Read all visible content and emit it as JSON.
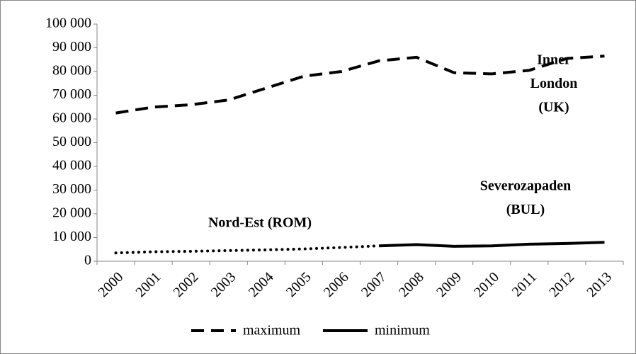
{
  "chart_data": {
    "type": "line",
    "categories": [
      "2000",
      "2001",
      "2002",
      "2003",
      "2004",
      "2005",
      "2006",
      "2007",
      "2008",
      "2009",
      "2010",
      "2011",
      "2012",
      "2013"
    ],
    "series": [
      {
        "name": "maximum",
        "color": "#000000",
        "style": "dashed",
        "values": [
          62500,
          65000,
          66000,
          68000,
          73000,
          78000,
          80000,
          84500,
          86000,
          79500,
          79000,
          80500,
          85500,
          86500
        ],
        "annotation": [
          "Inner",
          "London",
          "(UK)"
        ]
      },
      {
        "name": "minimum",
        "color": "#000000",
        "style": "solid",
        "values": [
          3500,
          4000,
          4200,
          4500,
          4800,
          5200,
          5800,
          6500,
          7000,
          6300,
          6500,
          7200,
          7500,
          8000
        ],
        "segments": [
          {
            "from": 0,
            "to": 7,
            "style": "dotted",
            "label": [
              "Nord-Est (ROM)"
            ]
          },
          {
            "from": 7,
            "to": 13,
            "style": "solid",
            "label": [
              "Severozapaden",
              "(BUL)"
            ]
          }
        ]
      }
    ],
    "ylim": [
      0,
      100000
    ],
    "yticks": [
      0,
      {
        "value": 10000,
        "label": "10 000"
      },
      {
        "value": 20000,
        "label": "20 000"
      },
      {
        "value": 30000,
        "label": "30 000"
      },
      {
        "value": 40000,
        "label": "40 000"
      },
      {
        "value": 50000,
        "label": "50 000"
      },
      {
        "value": 60000,
        "label": "60 000"
      },
      {
        "value": 70000,
        "label": "70 000"
      },
      {
        "value": 80000,
        "label": "80 000"
      },
      {
        "value": 90000,
        "label": "90 000"
      },
      {
        "value": 100000,
        "label": "100 000"
      }
    ],
    "grid": false,
    "legend": "bottom"
  }
}
